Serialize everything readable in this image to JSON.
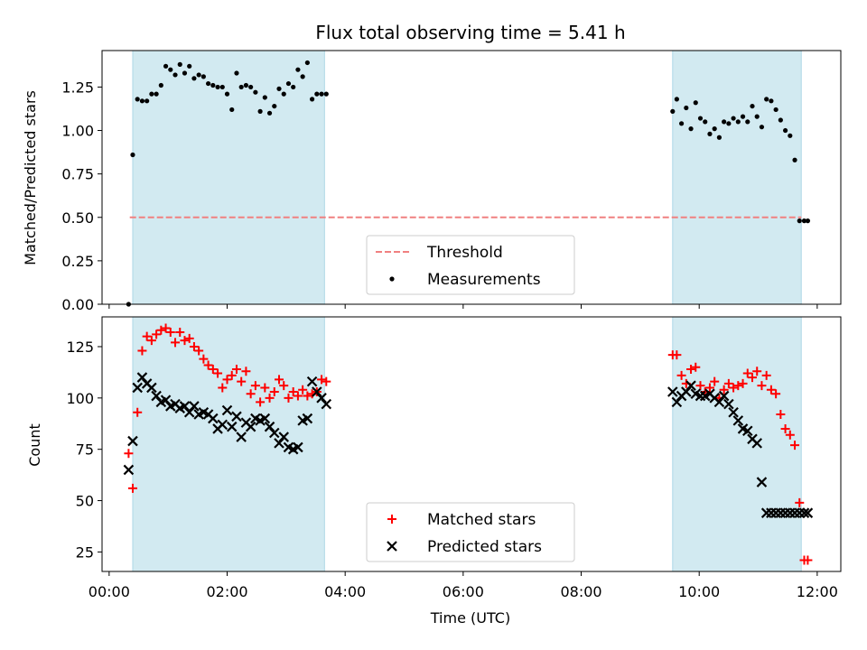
{
  "chart_data": [
    {
      "type": "scatter",
      "title": "Flux total observing time = 5.41 h",
      "xlabel": "",
      "ylabel": "Matched/Predicted stars",
      "xlim": [
        -0.12,
        12.4
      ],
      "ylim": [
        0.0,
        1.46
      ],
      "yticks": [
        0.0,
        0.25,
        0.5,
        0.75,
        1.0,
        1.25
      ],
      "ytick_labels": [
        "0.00",
        "0.25",
        "0.50",
        "0.75",
        "1.00",
        "1.25"
      ],
      "xticks": [
        0,
        2,
        4,
        6,
        8,
        10,
        12
      ],
      "xtick_labels": [],
      "grid": false,
      "legend_position": "lower-center",
      "shaded_intervals": [
        [
          0.4,
          3.65
        ],
        [
          9.55,
          11.73
        ]
      ],
      "shade_color": "#add8e6",
      "threshold": {
        "name": "Threshold",
        "y": 0.5,
        "x_range": [
          0.35,
          11.73
        ],
        "color": "#f08080"
      },
      "series": [
        {
          "name": "Measurements",
          "color": "#000000",
          "x": [
            0.33,
            0.4,
            0.48,
            0.56,
            0.64,
            0.72,
            0.8,
            0.88,
            0.96,
            1.04,
            1.12,
            1.2,
            1.28,
            1.36,
            1.44,
            1.52,
            1.6,
            1.68,
            1.76,
            1.84,
            1.92,
            2.0,
            2.08,
            2.16,
            2.24,
            2.32,
            2.4,
            2.48,
            2.56,
            2.64,
            2.72,
            2.8,
            2.88,
            2.96,
            3.04,
            3.12,
            3.2,
            3.28,
            3.36,
            3.44,
            3.52,
            3.6,
            3.68,
            9.55,
            9.62,
            9.7,
            9.78,
            9.86,
            9.94,
            10.02,
            10.1,
            10.18,
            10.26,
            10.34,
            10.42,
            10.5,
            10.58,
            10.66,
            10.74,
            10.82,
            10.9,
            10.98,
            11.06,
            11.14,
            11.22,
            11.3,
            11.38,
            11.46,
            11.54,
            11.62,
            11.7,
            11.78,
            11.84
          ],
          "y": [
            0.0,
            0.86,
            1.18,
            1.17,
            1.17,
            1.21,
            1.21,
            1.26,
            1.37,
            1.35,
            1.32,
            1.38,
            1.33,
            1.37,
            1.3,
            1.32,
            1.31,
            1.27,
            1.26,
            1.25,
            1.25,
            1.21,
            1.12,
            1.33,
            1.25,
            1.26,
            1.25,
            1.22,
            1.11,
            1.19,
            1.1,
            1.14,
            1.24,
            1.21,
            1.27,
            1.25,
            1.35,
            1.31,
            1.39,
            1.18,
            1.21,
            1.21,
            1.21,
            1.11,
            1.18,
            1.04,
            1.13,
            1.01,
            1.16,
            1.07,
            1.05,
            0.98,
            1.01,
            0.96,
            1.05,
            1.04,
            1.07,
            1.05,
            1.08,
            1.05,
            1.14,
            1.08,
            1.02,
            1.18,
            1.17,
            1.12,
            1.06,
            1.0,
            0.97,
            0.83,
            0.48,
            0.48,
            0.48
          ]
        }
      ]
    },
    {
      "type": "scatter",
      "title": "",
      "xlabel": "Time (UTC)",
      "ylabel": "Count",
      "xlim": [
        -0.12,
        12.4
      ],
      "ylim": [
        15.5,
        139.5
      ],
      "yticks": [
        25,
        50,
        75,
        100,
        125
      ],
      "ytick_labels": [
        "25",
        "50",
        "75",
        "100",
        "125"
      ],
      "xticks": [
        0,
        2,
        4,
        6,
        8,
        10,
        12
      ],
      "xtick_labels": [
        "00:00",
        "02:00",
        "04:00",
        "06:00",
        "08:00",
        "10:00",
        "12:00"
      ],
      "grid": false,
      "legend_position": "lower-center",
      "shaded_intervals": [
        [
          0.4,
          3.65
        ],
        [
          9.55,
          11.73
        ]
      ],
      "shade_color": "#add8e6",
      "series": [
        {
          "name": "Matched stars",
          "color": "#ff0000",
          "marker": "plus",
          "x": [
            0.33,
            0.4,
            0.48,
            0.56,
            0.64,
            0.72,
            0.8,
            0.88,
            0.96,
            1.04,
            1.12,
            1.2,
            1.28,
            1.36,
            1.44,
            1.52,
            1.6,
            1.68,
            1.76,
            1.84,
            1.92,
            2.0,
            2.08,
            2.16,
            2.24,
            2.32,
            2.4,
            2.48,
            2.56,
            2.64,
            2.72,
            2.8,
            2.88,
            2.96,
            3.04,
            3.12,
            3.2,
            3.28,
            3.36,
            3.44,
            3.52,
            3.6,
            3.68,
            9.55,
            9.62,
            9.7,
            9.78,
            9.86,
            9.94,
            10.02,
            10.1,
            10.18,
            10.26,
            10.34,
            10.42,
            10.5,
            10.58,
            10.66,
            10.74,
            10.82,
            10.9,
            10.98,
            11.06,
            11.14,
            11.22,
            11.3,
            11.38,
            11.46,
            11.54,
            11.62,
            11.7,
            11.78,
            11.84
          ],
          "y": [
            73,
            56,
            93,
            123,
            130,
            128,
            131,
            133,
            134,
            132,
            127,
            132,
            128,
            129,
            125,
            123,
            119,
            116,
            114,
            112,
            105,
            109,
            111,
            114,
            108,
            113,
            102,
            106,
            98,
            105,
            100,
            103,
            109,
            106,
            100,
            103,
            101,
            104,
            101,
            102,
            103,
            109,
            108,
            121,
            121,
            111,
            107,
            114,
            115,
            106,
            103,
            105,
            108,
            100,
            104,
            107,
            105,
            106,
            107,
            112,
            110,
            113,
            106,
            111,
            104,
            102,
            92,
            85,
            82,
            77,
            49,
            21,
            21
          ]
        },
        {
          "name": "Predicted stars",
          "color": "#000000",
          "marker": "x",
          "x": [
            0.33,
            0.4,
            0.48,
            0.56,
            0.64,
            0.72,
            0.8,
            0.88,
            0.96,
            1.04,
            1.12,
            1.2,
            1.28,
            1.36,
            1.44,
            1.52,
            1.6,
            1.68,
            1.76,
            1.84,
            1.92,
            2.0,
            2.08,
            2.16,
            2.24,
            2.32,
            2.4,
            2.48,
            2.56,
            2.64,
            2.72,
            2.8,
            2.88,
            2.96,
            3.04,
            3.12,
            3.2,
            3.28,
            3.36,
            3.44,
            3.52,
            3.6,
            3.68,
            9.55,
            9.62,
            9.7,
            9.78,
            9.86,
            9.94,
            10.02,
            10.1,
            10.18,
            10.26,
            10.34,
            10.42,
            10.5,
            10.58,
            10.66,
            10.74,
            10.82,
            10.9,
            10.98,
            11.06,
            11.14,
            11.22,
            11.3,
            11.38,
            11.46,
            11.54,
            11.62,
            11.7,
            11.78,
            11.84
          ],
          "y": [
            65,
            79,
            105,
            110,
            107,
            105,
            101,
            98,
            99,
            96,
            97,
            95,
            96,
            93,
            96,
            92,
            93,
            92,
            90,
            85,
            87,
            94,
            86,
            91,
            81,
            88,
            86,
            90,
            89,
            90,
            86,
            83,
            78,
            81,
            76,
            75,
            76,
            89,
            90,
            108,
            103,
            100,
            97,
            103,
            98,
            101,
            103,
            106,
            102,
            101,
            101,
            102,
            100,
            98,
            101,
            97,
            93,
            89,
            85,
            84,
            80,
            78,
            59,
            44,
            44,
            44,
            44,
            44,
            44,
            44,
            44,
            44,
            44
          ]
        }
      ]
    }
  ]
}
